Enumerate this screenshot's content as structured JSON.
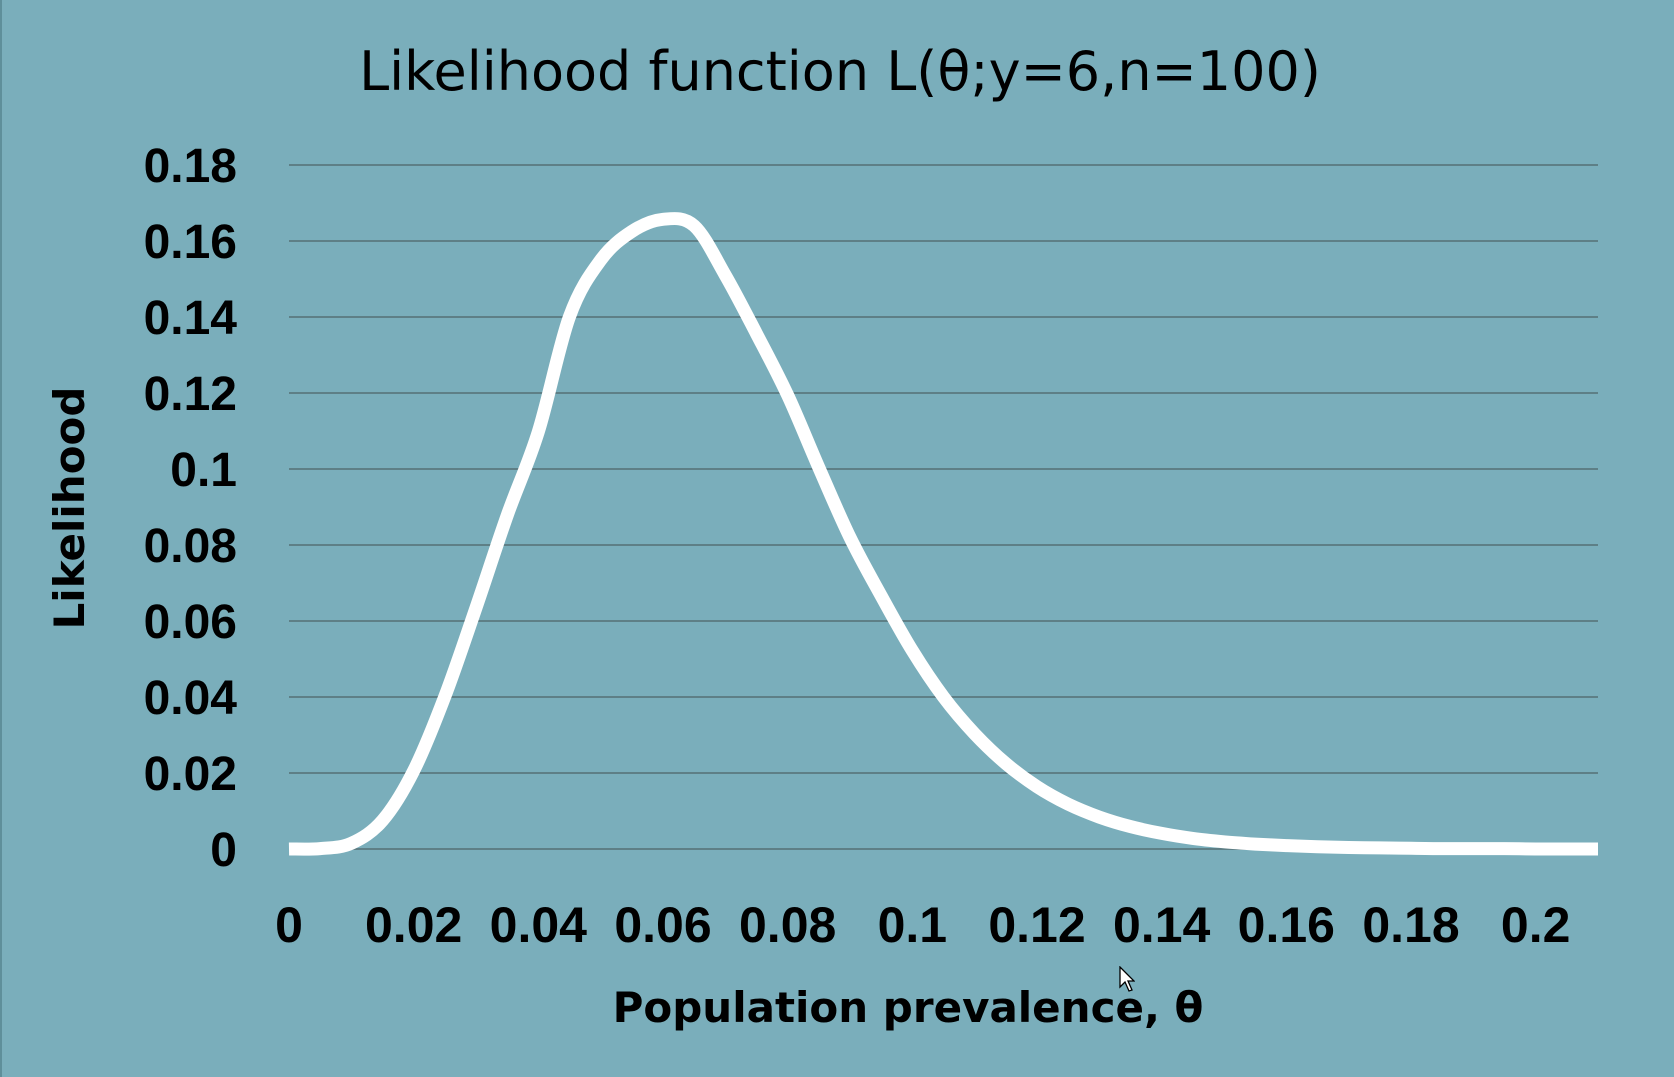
{
  "chart_data": {
    "type": "line",
    "title": "Likelihood function L(θ;y=6,n=100)",
    "xlabel": "Population prevalence, θ",
    "ylabel": "Likelihood",
    "xlim": [
      0,
      0.21
    ],
    "ylim": [
      0,
      0.18
    ],
    "x_ticks": [
      "0",
      "0.02",
      "0.04",
      "0.06",
      "0.08",
      "0.1",
      "0.12",
      "0.14",
      "0.16",
      "0.18",
      "0.2"
    ],
    "x_tick_values": [
      0,
      0.02,
      0.04,
      0.06,
      0.08,
      0.1,
      0.12,
      0.14,
      0.16,
      0.18,
      0.2
    ],
    "y_ticks": [
      "0",
      "0.02",
      "0.04",
      "0.06",
      "0.08",
      "0.1",
      "0.12",
      "0.14",
      "0.16",
      "0.18"
    ],
    "y_tick_values": [
      0,
      0.02,
      0.04,
      0.06,
      0.08,
      0.1,
      0.12,
      0.14,
      0.16,
      0.18
    ],
    "grid": {
      "horizontal": true,
      "vertical": false
    },
    "legend": "none",
    "series": [
      {
        "color": "#ffffff",
        "x": [
          0,
          0.005,
          0.01,
          0.015,
          0.02,
          0.025,
          0.03,
          0.035,
          0.04,
          0.045,
          0.05,
          0.055,
          0.06,
          0.065,
          0.07,
          0.075,
          0.08,
          0.085,
          0.09,
          0.095,
          0.1,
          0.105,
          0.11,
          0.115,
          0.12,
          0.125,
          0.13,
          0.135,
          0.14,
          0.145,
          0.15,
          0.155,
          0.16,
          0.165,
          0.17,
          0.175,
          0.18,
          0.185,
          0.19,
          0.195,
          0.2,
          0.205,
          0.21
        ],
        "values": [
          0,
          0.0001,
          0.0015,
          0.0075,
          0.0206,
          0.0401,
          0.0635,
          0.0878,
          0.1098,
          0.1401,
          0.155,
          0.1625,
          0.1657,
          0.164,
          0.151,
          0.1356,
          0.1194,
          0.1004,
          0.082,
          0.0666,
          0.0522,
          0.04,
          0.0303,
          0.0225,
          0.0164,
          0.0118,
          0.0084,
          0.0059,
          0.0041,
          0.0028,
          0.0019,
          0.0013,
          0.0009,
          0.0006,
          0.0004,
          0.0003,
          0.0002,
          0.0001,
          0.0001,
          0.0001,
          0,
          0,
          0
        ]
      }
    ]
  },
  "colors": {
    "background": "#7aaebb",
    "gridline": "#5e7f86",
    "curve": "#ffffff",
    "text": "#000000"
  }
}
